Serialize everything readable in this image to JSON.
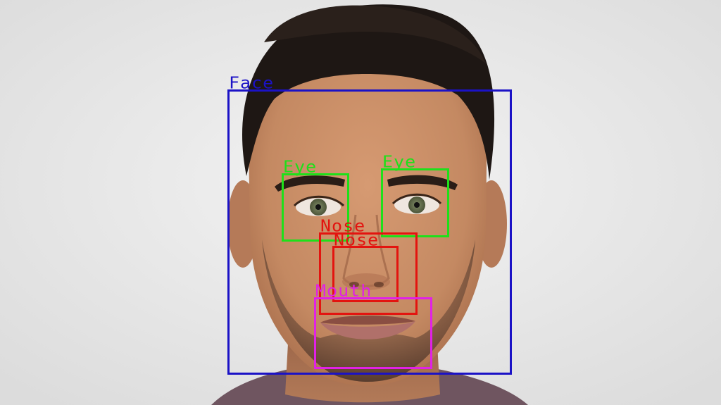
{
  "image": {
    "subject": "portrait-photo",
    "colors": {
      "background": "#ececec",
      "skin": "#c48962",
      "hair": "#1e1714",
      "shirt": "#6f5560"
    }
  },
  "detections": [
    {
      "label": "Face",
      "color": "#1b12c6"
    },
    {
      "label": "Eye",
      "color": "#1ee01a"
    },
    {
      "label": "Eye",
      "color": "#1ee01a"
    },
    {
      "label": "Nose",
      "color": "#e3140f"
    },
    {
      "label": "Nose",
      "color": "#e3140f"
    },
    {
      "label": "Mouth",
      "color": "#e121e6"
    }
  ]
}
